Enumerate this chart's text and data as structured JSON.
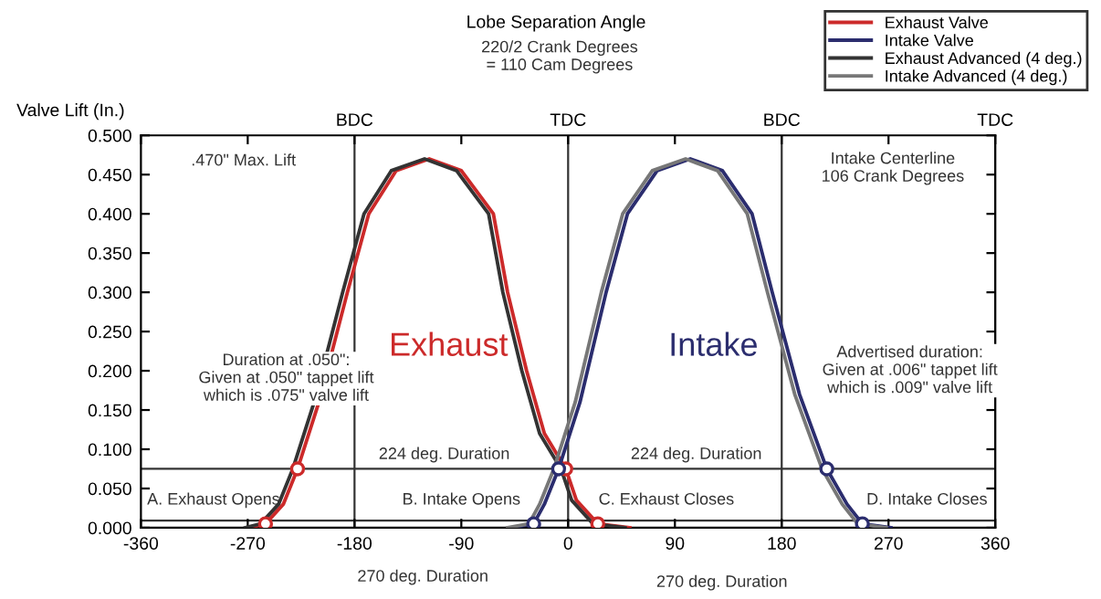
{
  "chart_data": {
    "type": "line",
    "title": "Lobe Separation Angle",
    "ylabel": "Valve Lift (In.)",
    "xlim": [
      -360,
      360
    ],
    "xticks": [
      -360,
      -270,
      -180,
      -90,
      0,
      90,
      180,
      270,
      360
    ],
    "ylim": [
      0,
      0.5
    ],
    "yticks": [
      {
        "value": 0,
        "label": "0.000"
      },
      {
        "value": 0.05,
        "label": "0.050"
      },
      {
        "value": 0.1,
        "label": "0.100"
      },
      {
        "value": 0.15,
        "label": "0.150"
      },
      {
        "value": 0.2,
        "label": "0.200"
      },
      {
        "value": 0.25,
        "label": "0.250"
      },
      {
        "value": 0.3,
        "label": "0.300"
      },
      {
        "value": 0.35,
        "label": "0.350"
      },
      {
        "value": 0.4,
        "label": "0.400"
      },
      {
        "value": 0.45,
        "label": "0.450"
      },
      {
        "value": 0.5,
        "label": "0.500"
      }
    ],
    "grid": false,
    "legend": "top right",
    "line_style": "solid",
    "series": [
      {
        "name": "Exhaust Valve",
        "color": "#cc2a2a",
        "x": [
          -268,
          -255,
          -240,
          -228,
          -210,
          -186,
          -168,
          -145,
          -117,
          -90,
          -63,
          -51,
          -35,
          -20,
          -2,
          7,
          25,
          52
        ],
        "values": [
          0,
          0.005,
          0.03,
          0.075,
          0.16,
          0.3,
          0.4,
          0.455,
          0.47,
          0.455,
          0.4,
          0.3,
          0.2,
          0.12,
          0.075,
          0.035,
          0.005,
          0
        ]
      },
      {
        "name": "Intake Valve",
        "color": "#2b2d6e",
        "x": [
          -47,
          -29,
          -20,
          -8,
          10,
          32,
          50,
          75,
          103,
          130,
          155,
          172,
          195,
          218,
          235,
          248,
          272
        ],
        "values": [
          0,
          0.005,
          0.03,
          0.075,
          0.16,
          0.3,
          0.4,
          0.455,
          0.47,
          0.455,
          0.4,
          0.3,
          0.17,
          0.075,
          0.03,
          0.005,
          0
        ]
      },
      {
        "name": "Exhaust Advanced (4 deg.)",
        "color": "#333333",
        "x": [
          -272,
          -259,
          -244,
          -232,
          -214,
          -190,
          -172,
          -149,
          -121,
          -94,
          -67,
          -55,
          -39,
          -24,
          -6,
          3,
          21,
          48
        ],
        "values": [
          0,
          0.005,
          0.03,
          0.075,
          0.16,
          0.3,
          0.4,
          0.455,
          0.47,
          0.455,
          0.4,
          0.3,
          0.2,
          0.12,
          0.075,
          0.035,
          0.005,
          0
        ]
      },
      {
        "name": "Intake Advanced (4 deg.)",
        "color": "#777777",
        "x": [
          -51,
          -33,
          -24,
          -12,
          6,
          28,
          46,
          71,
          99,
          126,
          151,
          168,
          191,
          214,
          231,
          244,
          268
        ],
        "values": [
          0,
          0.005,
          0.03,
          0.075,
          0.16,
          0.3,
          0.4,
          0.455,
          0.47,
          0.455,
          0.4,
          0.3,
          0.17,
          0.075,
          0.03,
          0.005,
          0
        ]
      },
      {
        "type": "scatter",
        "marker": "circle",
        "color": "#cc2a2a",
        "x": [
          -255,
          -228,
          -2,
          25
        ],
        "values": [
          0.005,
          0.075,
          0.075,
          0.005
        ]
      },
      {
        "type": "scatter",
        "marker": "circle",
        "color": "#2b2d6e",
        "x": [
          -29,
          -8,
          218,
          248
        ],
        "values": [
          0.005,
          0.075,
          0.075,
          0.005
        ]
      }
    ],
    "ref_lines": [
      {
        "axis": "x",
        "value": -180,
        "label": "BDC"
      },
      {
        "axis": "x",
        "value": 0,
        "label": "TDC"
      },
      {
        "axis": "x",
        "value": 180,
        "label": "BDC"
      },
      {
        "axis": "x",
        "value": 360,
        "label": "TDC"
      },
      {
        "axis": "y",
        "value": 0.075,
        "label": null
      },
      {
        "axis": "y",
        "value": 0.009,
        "label": null
      }
    ],
    "annotations": [
      "220/2 Crank Degrees\n= 110 Cam Degrees",
      ".470\" Max. Lift",
      "Intake Centerline\n106 Crank Degrees",
      "Exhaust",
      "Intake",
      "Duration at .050\":\nGiven at .050\" tappet lift\nwhich is .075\" valve lift",
      "Advertised duration:\nGiven at .006\" tappet lift\nwhich is .009\" valve lift",
      "224 deg. Duration",
      "224 deg. Duration",
      "A. Exhaust Opens",
      "B. Intake Opens",
      "C. Exhaust Closes",
      "D. Intake Closes",
      "270 deg. Duration",
      "270 deg. Duration"
    ]
  }
}
